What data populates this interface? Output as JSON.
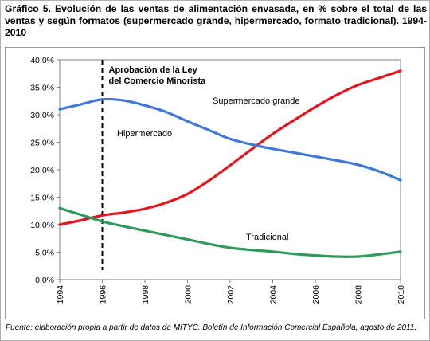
{
  "title": "Gráfico 5. Evolución de las ventas de alimentación envasada, en % sobre el total de las ventas y según formatos (supermercado grande, hipermercado, formato tradicional). 1994-2010",
  "source": "Fuente: elaboración propia a partir de datos de MITYC. Boletín de Información Comercial Española, agosto de 2011.",
  "chart_data": {
    "type": "line",
    "title": "",
    "xlabel": "",
    "ylabel": "",
    "xlim": [
      1994,
      2010
    ],
    "ylim": [
      0,
      40
    ],
    "x_ticks": [
      "1994",
      "1996",
      "1998",
      "2000",
      "2002",
      "2004",
      "2006",
      "2008",
      "2010"
    ],
    "y_ticks": [
      "0,0%",
      "5,0%",
      "10,0%",
      "15,0%",
      "20,0%",
      "25,0%",
      "30,0%",
      "35,0%",
      "40,0%"
    ],
    "grid": false,
    "legend": "inline labels",
    "series": [
      {
        "name": "Supermercado grande",
        "color": "#e8141b",
        "x": [
          1994,
          1995,
          1996,
          1997,
          1998,
          1999,
          2000,
          2001,
          2002,
          2003,
          2004,
          2005,
          2006,
          2007,
          2008,
          2009,
          2010
        ],
        "values": [
          10.0,
          10.8,
          11.7,
          12.2,
          12.9,
          14.0,
          15.6,
          18.0,
          20.8,
          23.7,
          26.5,
          29.0,
          31.4,
          33.6,
          35.4,
          36.7,
          38.0
        ]
      },
      {
        "name": "Hipermercado",
        "color": "#3f78d6",
        "x": [
          1994,
          1995,
          1996,
          1997,
          1998,
          1999,
          2000,
          2001,
          2002,
          2003,
          2004,
          2005,
          2006,
          2007,
          2008,
          2009,
          2010
        ],
        "values": [
          31.0,
          31.9,
          32.8,
          32.6,
          31.7,
          30.5,
          28.8,
          27.2,
          25.6,
          24.6,
          23.8,
          23.1,
          22.4,
          21.7,
          20.9,
          19.7,
          18.1
        ]
      },
      {
        "name": "Tradicional",
        "color": "#2e9b5a",
        "x": [
          1994,
          1995,
          1996,
          1997,
          1998,
          1999,
          2000,
          2001,
          2002,
          2003,
          2004,
          2005,
          2006,
          2007,
          2008,
          2009,
          2010
        ],
        "values": [
          13.0,
          11.8,
          10.6,
          9.7,
          8.9,
          8.1,
          7.3,
          6.5,
          5.8,
          5.4,
          5.1,
          4.7,
          4.4,
          4.2,
          4.2,
          4.6,
          5.1
        ]
      }
    ],
    "annotations": [
      {
        "type": "vertical-dashed-line",
        "x": 1996,
        "text_line1": "Aprobación de la Ley",
        "text_line2": "del Comercio Minorista"
      }
    ]
  }
}
